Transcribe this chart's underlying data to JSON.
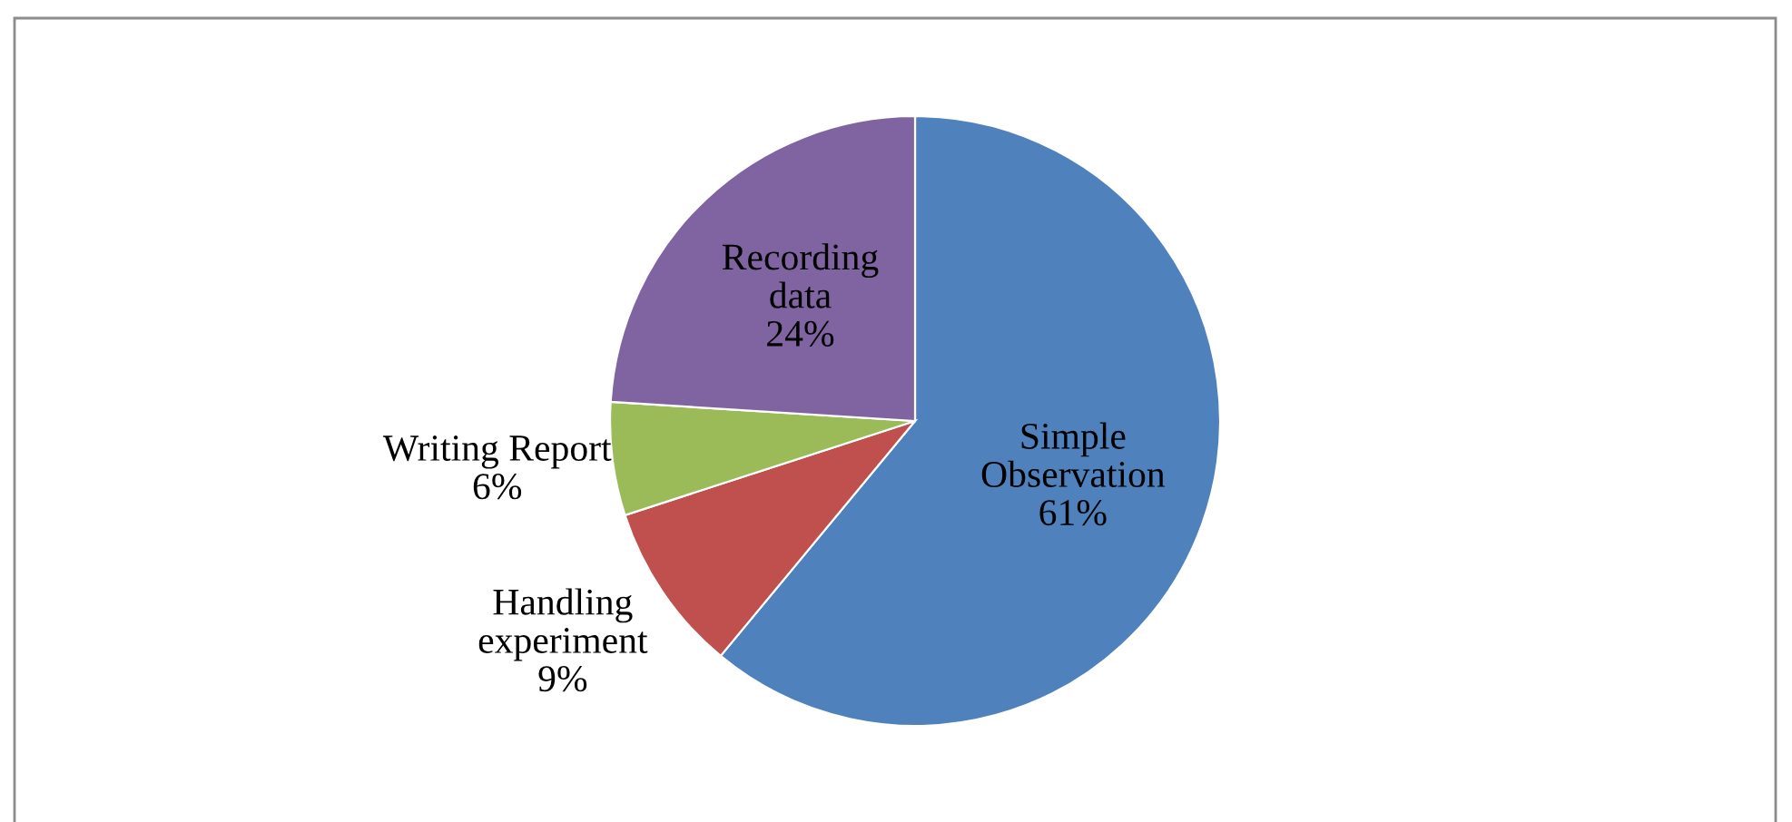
{
  "chart_data": {
    "type": "pie",
    "categories": [
      "Simple Observation",
      "Handling experiment",
      "Writing Report",
      "Recording data"
    ],
    "values": [
      61,
      9,
      6,
      24
    ],
    "colors": [
      "#4f81bd",
      "#c0504d",
      "#9bbb59",
      "#8064a2"
    ],
    "value_labels": [
      "61%",
      "9%",
      "6%",
      "24%"
    ],
    "legend": false
  }
}
